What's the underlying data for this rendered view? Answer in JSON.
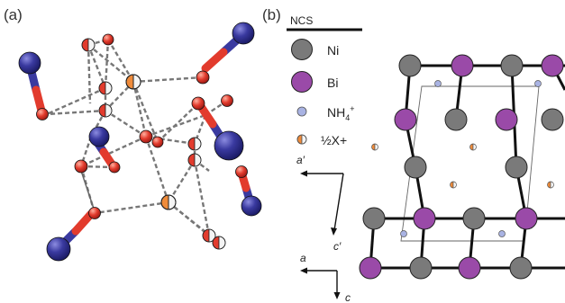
{
  "panel_a": {
    "label": "(a)"
  },
  "panel_b": {
    "label": "(b)",
    "legend": {
      "header": "NCS",
      "items": [
        {
          "name": "Ni",
          "color": "#7a7a7a"
        },
        {
          "name": "Bi",
          "color": "#9a4aa8"
        },
        {
          "name": "NH4+",
          "color": "#a9b3e3"
        },
        {
          "name": "½X+",
          "color": "#ef8b3a"
        }
      ]
    },
    "axes_top": {
      "horizontal": "a′",
      "diagonal": "c′"
    },
    "axes_bottom": {
      "horizontal": "a",
      "vertical": "c"
    }
  },
  "colors": {
    "ncs_blue": "#3a3aa0",
    "ncs_red": "#e23b2d",
    "dash_gray": "#777777",
    "cation_orange": "#ef8b3a",
    "ni_gray": "#7a7a7a",
    "bi_purple": "#9a4aa8",
    "nh4_blue": "#a9b3e3"
  }
}
